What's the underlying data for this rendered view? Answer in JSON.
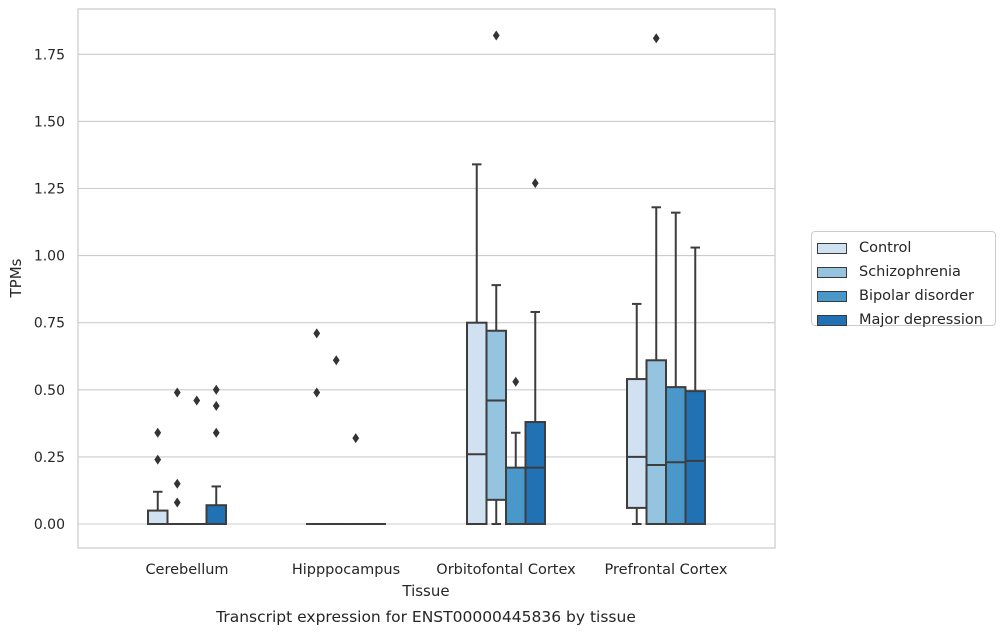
{
  "chart_data": {
    "type": "boxplot",
    "title": "Transcript expression for ENST00000445836 by tissue",
    "xlabel": "Tissue",
    "ylabel": "TPMs",
    "ylim": [
      -0.09,
      1.93
    ],
    "yticks": [
      0.0,
      0.25,
      0.5,
      0.75,
      1.0,
      1.25,
      1.5,
      1.75
    ],
    "ytick_labels": [
      "0.00",
      "0.25",
      "0.50",
      "0.75",
      "1.00",
      "1.25",
      "1.50",
      "1.75"
    ],
    "grid": "horizontal",
    "legend_position": "right",
    "categories": [
      "Cerebellum",
      "Hipppocampus",
      "Orbitofontal Cortex",
      "Prefrontal Cortex"
    ],
    "series": [
      {
        "name": "Control",
        "color": "#d0e1f2",
        "boxes": [
          {
            "min": 0.0,
            "q1": 0.0,
            "median": 0.0,
            "q3": 0.05,
            "max": 0.12,
            "outliers": [
              0.24,
              0.34
            ]
          },
          {
            "min": 0.0,
            "q1": 0.0,
            "median": 0.0,
            "q3": 0.0,
            "max": 0.0,
            "outliers": [
              0.49,
              0.71
            ]
          },
          {
            "min": 0.0,
            "q1": 0.0,
            "median": 0.26,
            "q3": 0.75,
            "max": 1.34,
            "outliers": []
          },
          {
            "min": 0.0,
            "q1": 0.06,
            "median": 0.25,
            "q3": 0.54,
            "max": 0.82,
            "outliers": []
          }
        ]
      },
      {
        "name": "Schizophrenia",
        "color": "#94c4df",
        "boxes": [
          {
            "min": 0.0,
            "q1": 0.0,
            "median": 0.0,
            "q3": 0.0,
            "max": 0.0,
            "outliers": [
              0.08,
              0.15,
              0.49
            ]
          },
          {
            "min": 0.0,
            "q1": 0.0,
            "median": 0.0,
            "q3": 0.0,
            "max": 0.0,
            "outliers": [
              0.61
            ]
          },
          {
            "min": 0.0,
            "q1": 0.09,
            "median": 0.46,
            "q3": 0.72,
            "max": 0.89,
            "outliers": [
              1.82
            ]
          },
          {
            "min": 0.0,
            "q1": 0.0,
            "median": 0.22,
            "q3": 0.61,
            "max": 1.18,
            "outliers": [
              1.81
            ]
          }
        ]
      },
      {
        "name": "Bipolar disorder",
        "color": "#4a98c9",
        "boxes": [
          {
            "min": 0.0,
            "q1": 0.0,
            "median": 0.0,
            "q3": 0.0,
            "max": 0.0,
            "outliers": [
              0.46
            ]
          },
          {
            "min": 0.0,
            "q1": 0.0,
            "median": 0.0,
            "q3": 0.0,
            "max": 0.0,
            "outliers": [
              0.32
            ]
          },
          {
            "min": 0.0,
            "q1": 0.0,
            "median": 0.0,
            "q3": 0.21,
            "max": 0.34,
            "outliers": [
              0.53
            ]
          },
          {
            "min": 0.0,
            "q1": 0.0,
            "median": 0.23,
            "q3": 0.51,
            "max": 1.16,
            "outliers": []
          }
        ]
      },
      {
        "name": "Major depression",
        "color": "#2171b5",
        "boxes": [
          {
            "min": 0.0,
            "q1": 0.0,
            "median": 0.0,
            "q3": 0.07,
            "max": 0.14,
            "outliers": [
              0.34,
              0.44,
              0.5
            ]
          },
          {
            "min": 0.0,
            "q1": 0.0,
            "median": 0.0,
            "q3": 0.0,
            "max": 0.0,
            "outliers": []
          },
          {
            "min": 0.0,
            "q1": 0.0,
            "median": 0.21,
            "q3": 0.38,
            "max": 0.79,
            "outliers": [
              1.27
            ]
          },
          {
            "min": 0.0,
            "q1": 0.0,
            "median": 0.235,
            "q3": 0.495,
            "max": 1.03,
            "outliers": []
          }
        ]
      }
    ]
  }
}
